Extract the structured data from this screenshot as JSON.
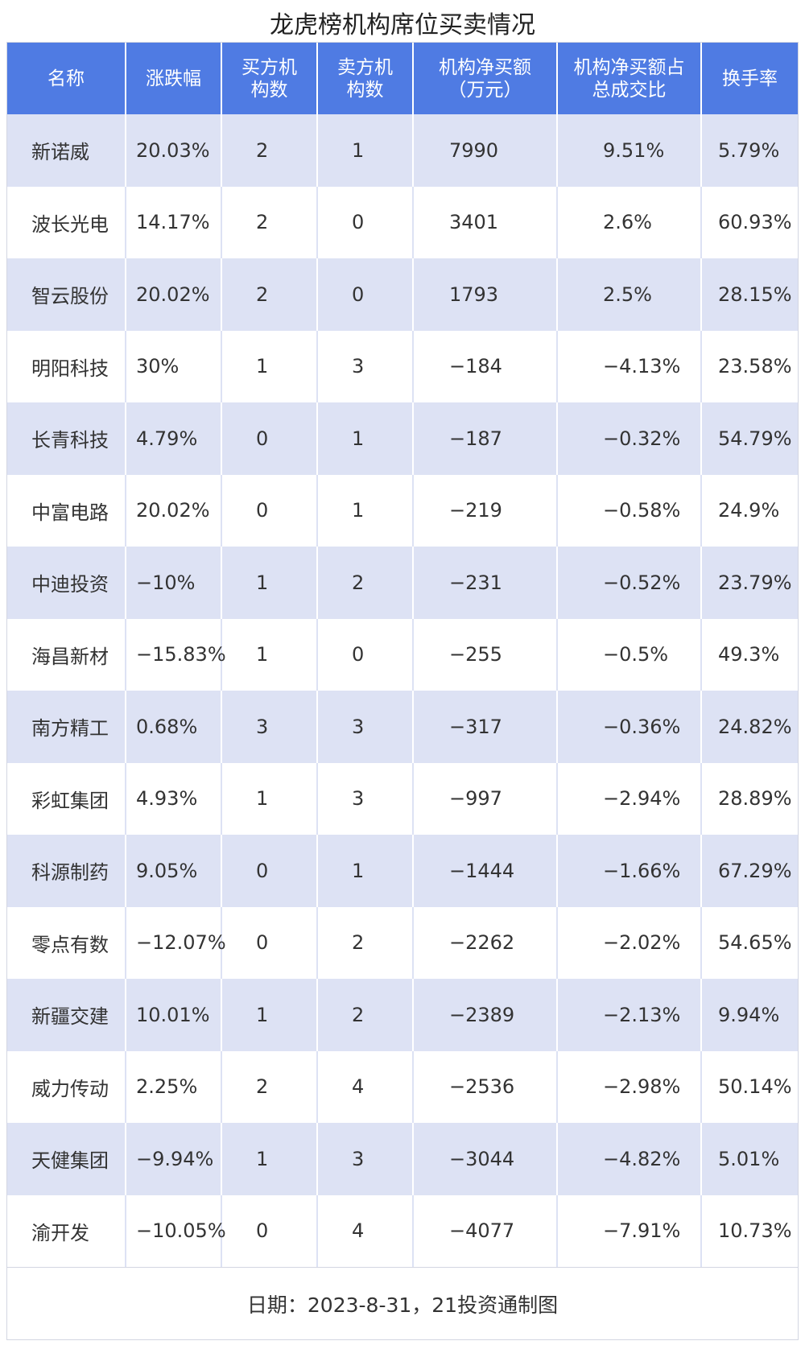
{
  "chart_data": {
    "type": "table",
    "title": "龙虎榜机构席位买卖情况",
    "columns": [
      "名称",
      "涨跌幅",
      "买方机\n构数",
      "卖方机\n构数",
      "机构净买额\n（万元）",
      "机构净买额占\n总成交比",
      "换手率"
    ],
    "rows": [
      [
        "新诺威",
        "20.03%",
        "2",
        "1",
        "7990",
        "9.51%",
        "5.79%"
      ],
      [
        "波长光电",
        "14.17%",
        "2",
        "0",
        "3401",
        "2.6%",
        "60.93%"
      ],
      [
        "智云股份",
        "20.02%",
        "2",
        "0",
        "1793",
        "2.5%",
        "28.15%"
      ],
      [
        "明阳科技",
        "30%",
        "1",
        "3",
        "−184",
        "−4.13%",
        "23.58%"
      ],
      [
        "长青科技",
        "4.79%",
        "0",
        "1",
        "−187",
        "−0.32%",
        "54.79%"
      ],
      [
        "中富电路",
        "20.02%",
        "0",
        "1",
        "−219",
        "−0.58%",
        "24.9%"
      ],
      [
        "中迪投资",
        "−10%",
        "1",
        "2",
        "−231",
        "−0.52%",
        "23.79%"
      ],
      [
        "海昌新材",
        "−15.83%",
        "1",
        "0",
        "−255",
        "−0.5%",
        "49.3%"
      ],
      [
        "南方精工",
        "0.68%",
        "3",
        "3",
        "−317",
        "−0.36%",
        "24.82%"
      ],
      [
        "彩虹集团",
        "4.93%",
        "1",
        "3",
        "−997",
        "−2.94%",
        "28.89%"
      ],
      [
        "科源制药",
        "9.05%",
        "0",
        "1",
        "−1444",
        "−1.66%",
        "67.29%"
      ],
      [
        "零点有数",
        "−12.07%",
        "0",
        "2",
        "−2262",
        "−2.02%",
        "54.65%"
      ],
      [
        "新疆交建",
        "10.01%",
        "1",
        "2",
        "−2389",
        "−2.13%",
        "9.94%"
      ],
      [
        "威力传动",
        "2.25%",
        "2",
        "4",
        "−2536",
        "−2.98%",
        "50.14%"
      ],
      [
        "天健集团",
        "−9.94%",
        "1",
        "3",
        "−3044",
        "−4.82%",
        "5.01%"
      ],
      [
        "渝开发",
        "−10.05%",
        "0",
        "4",
        "−4077",
        "−7.91%",
        "10.73%"
      ]
    ],
    "footer": "日期：2023-8-31，21投资通制图"
  },
  "colors": {
    "header_bg": "#4f7be3",
    "header_text": "#ffffff",
    "row_alt_bg": "#dde2f4",
    "row_bg": "#ffffff"
  }
}
